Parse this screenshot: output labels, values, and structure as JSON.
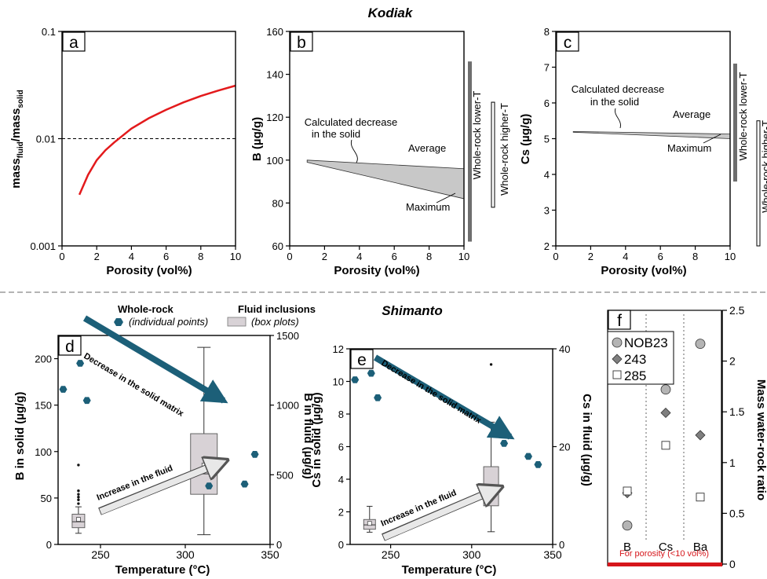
{
  "sections": {
    "top_title": "Kodiak",
    "bottom_title": "Shimanto"
  },
  "legend": {
    "whole_rock_title": "Whole-rock",
    "whole_rock_desc": "(individual points)",
    "fluid_title": "Fluid inclusions",
    "fluid_desc": "(box plots)"
  },
  "colors": {
    "red_curve": "#e31a1c",
    "teal": "#1c5f78",
    "band_fill": "#c8c8c8",
    "box_fill": "#d8d2d6",
    "red_bar": "#d6161b"
  },
  "chart_data": [
    {
      "panel": "a",
      "type": "line",
      "xlabel": "Porosity (vol%)",
      "ylabel_main": "mass",
      "ylabel_sub1": "fluid",
      "ylabel_sep": "/mass",
      "ylabel_sub2": "solid",
      "yscale": "log",
      "xlim": [
        0,
        10
      ],
      "ylim": [
        0.001,
        0.1
      ],
      "xticks": [
        "0",
        "2",
        "4",
        "6",
        "8",
        "10"
      ],
      "yticks": [
        "0.001",
        "0.01",
        "0.1"
      ],
      "series": [
        {
          "x": [
            1,
            1.5,
            2,
            2.5,
            3,
            4,
            5,
            6,
            7,
            8,
            9,
            10
          ],
          "y": [
            0.003,
            0.0046,
            0.0063,
            0.0078,
            0.0092,
            0.0124,
            0.0155,
            0.0186,
            0.0218,
            0.025,
            0.0281,
            0.0312
          ]
        }
      ],
      "reference_line": {
        "y": 0.01,
        "style": "dashed"
      }
    },
    {
      "panel": "b",
      "type": "area",
      "xlabel": "Porosity (vol%)",
      "ylabel": "B (µg/g)",
      "xlim": [
        0,
        10
      ],
      "ylim": [
        60,
        160
      ],
      "xticks": [
        "0",
        "2",
        "4",
        "6",
        "8",
        "10"
      ],
      "yticks": [
        "60",
        "80",
        "100",
        "120",
        "140",
        "160"
      ],
      "band": {
        "x": [
          1,
          10
        ],
        "upper": [
          100,
          96
        ],
        "lower": [
          99,
          82
        ]
      },
      "annotations": [
        "Calculated decrease",
        "in the solid",
        "Average",
        "Maximum"
      ],
      "ranges": [
        {
          "label": "Whole-rock lower-T",
          "min": 62,
          "max": 146
        },
        {
          "label": "Whole-rock higher-T",
          "min": 78,
          "max": 127
        }
      ]
    },
    {
      "panel": "c",
      "type": "area",
      "xlabel": "Porosity (vol%)",
      "ylabel": "Cs (µg/g)",
      "xlim": [
        0,
        10
      ],
      "ylim": [
        2,
        8
      ],
      "xticks": [
        "0",
        "2",
        "4",
        "6",
        "8",
        "10"
      ],
      "yticks": [
        "2",
        "3",
        "4",
        "5",
        "6",
        "7",
        "8"
      ],
      "band": {
        "x": [
          1,
          10
        ],
        "upper": [
          5.2,
          5.13
        ],
        "lower": [
          5.18,
          5.0
        ]
      },
      "annotations": [
        "Calculated decrease",
        "in the solid",
        "Average",
        "Maximum"
      ],
      "ranges": [
        {
          "label": "Whole-rock lower-T",
          "min": 3.8,
          "max": 7.1
        },
        {
          "label": "Whole-rock higher-T",
          "min": 2.0,
          "max": 5.5
        }
      ]
    },
    {
      "panel": "d",
      "type": "scatter",
      "xlabel": "Temperature (°C)",
      "ylabel_left": "B in solid (µg/g)",
      "ylabel_right": "B in fluid (µg/g)",
      "xlim": [
        225,
        350
      ],
      "ylim_left": [
        0,
        225
      ],
      "ylim_right": [
        0,
        1500
      ],
      "xticks": [
        "250",
        "300",
        "350"
      ],
      "yticks_left": [
        "0",
        "50",
        "100",
        "150",
        "200"
      ],
      "yticks_right": [
        "0",
        "500",
        "1000",
        "1500"
      ],
      "solid_points": {
        "x": [
          228,
          238,
          242,
          314,
          335,
          341
        ],
        "y": [
          167,
          195,
          155,
          63,
          65,
          97
        ]
      },
      "fluid_boxes": [
        {
          "x": 237,
          "whisker_low": 80,
          "q1": 120,
          "median": 163,
          "mean": 180,
          "q3": 217,
          "whisker_high": 270,
          "outliers": [
            293,
            320,
            340,
            360,
            385,
            570
          ]
        },
        {
          "x": 311,
          "whisker_low": 70,
          "q1": 360,
          "median": 507,
          "mean": 570,
          "q3": 795,
          "whisker_high": 1415
        }
      ],
      "annotations": [
        "Decrease in the solid matrix",
        "Increase in the fluid"
      ]
    },
    {
      "panel": "e",
      "type": "scatter",
      "xlabel": "Temperature (°C)",
      "ylabel_left": "Cs in solid (µg/g)",
      "ylabel_right": "Cs in fluid (µg/g)",
      "xlim": [
        225,
        350
      ],
      "ylim_left": [
        0,
        12
      ],
      "ylim_right": [
        0,
        40
      ],
      "xticks": [
        "250",
        "300",
        "350"
      ],
      "yticks_left": [
        "0",
        "2",
        "4",
        "6",
        "8",
        "10",
        "12"
      ],
      "yticks_right": [
        "0",
        "20",
        "40"
      ],
      "solid_points": {
        "x": [
          228,
          238,
          242,
          320,
          335,
          341
        ],
        "y": [
          10.1,
          10.5,
          9.0,
          6.2,
          5.4,
          4.9
        ]
      },
      "fluid_boxes": [
        {
          "x": 237,
          "whisker_low": 2.5,
          "q1": 3.1,
          "median": 4.0,
          "mean": 4.3,
          "q3": 5.1,
          "whisker_high": 7.8,
          "outliers": []
        },
        {
          "x": 312,
          "whisker_low": 2.6,
          "q1": 7.9,
          "median": 10.4,
          "mean": 11.7,
          "q3": 15.9,
          "whisker_high": 25.0,
          "outliers": [
            36.8
          ]
        }
      ],
      "annotations": [
        "Decrease in the solid matrix",
        "Increase in the fluid"
      ]
    },
    {
      "panel": "f",
      "type": "scatter",
      "ylabel": "Mass water-rock ratio",
      "ylim": [
        0,
        2.5
      ],
      "yticks": [
        "0",
        "0.5",
        "1",
        "1.5",
        "2",
        "2.5"
      ],
      "categories": [
        "B",
        "Cs",
        "Ba"
      ],
      "series": [
        {
          "name": "NOB23",
          "marker": "circle",
          "values": [
            0.38,
            1.72,
            2.17
          ]
        },
        {
          "name": "243",
          "marker": "diamond",
          "values": [
            0.7,
            1.49,
            1.27
          ]
        },
        {
          "name": "285",
          "marker": "square",
          "values": [
            0.72,
            1.17,
            0.66
          ]
        }
      ],
      "footnote": "For porosity (<10 vol%)"
    }
  ]
}
